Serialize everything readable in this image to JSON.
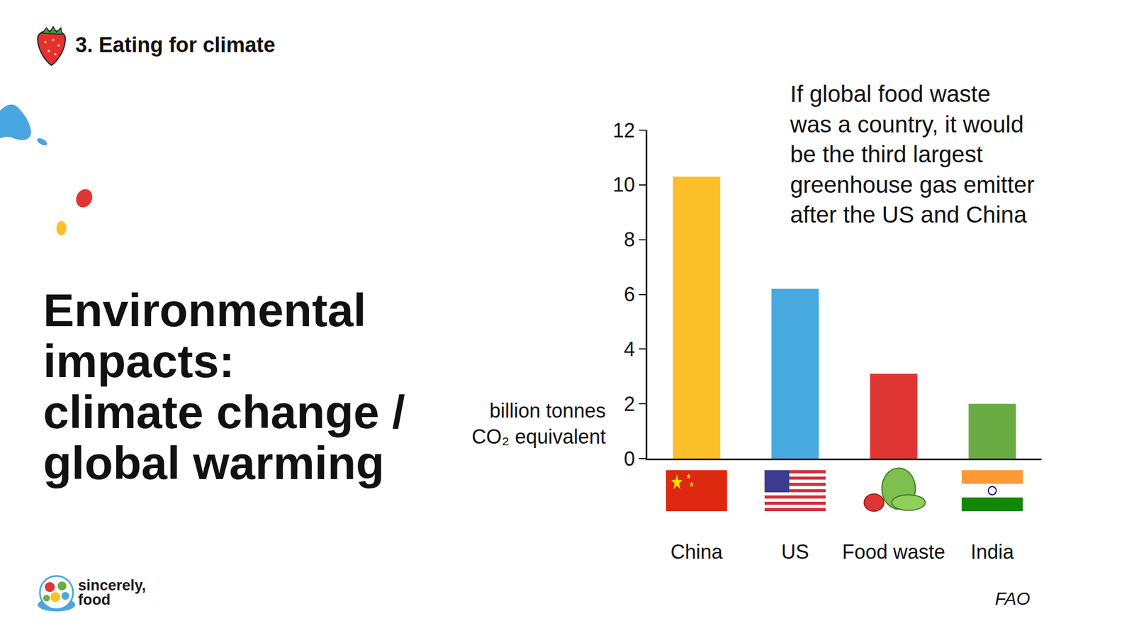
{
  "slide": {
    "section": "3. Eating for climate",
    "heading_lines": [
      "Environmental",
      "impacts:",
      "climate change /",
      "global warming"
    ],
    "logo_lines": [
      "sincerely,",
      "food"
    ]
  },
  "chart_data": {
    "type": "bar",
    "categories": [
      "China",
      "US",
      "Food waste",
      "India"
    ],
    "values": [
      10.3,
      6.2,
      3.1,
      2.0
    ],
    "colors": [
      "#fbbf2a",
      "#48a8e0",
      "#e03535",
      "#6aab44"
    ],
    "y_label": "billion tonnes CO₂ equivalent",
    "annotations": [
      "If global food waste was a country, it would be the third largest greenhouse gas emitter after the US and China"
    ],
    "source": "FAO",
    "ylim": [
      0,
      12
    ],
    "yticks": [
      0,
      2,
      4,
      6,
      8,
      10,
      12
    ],
    "grid": false
  }
}
